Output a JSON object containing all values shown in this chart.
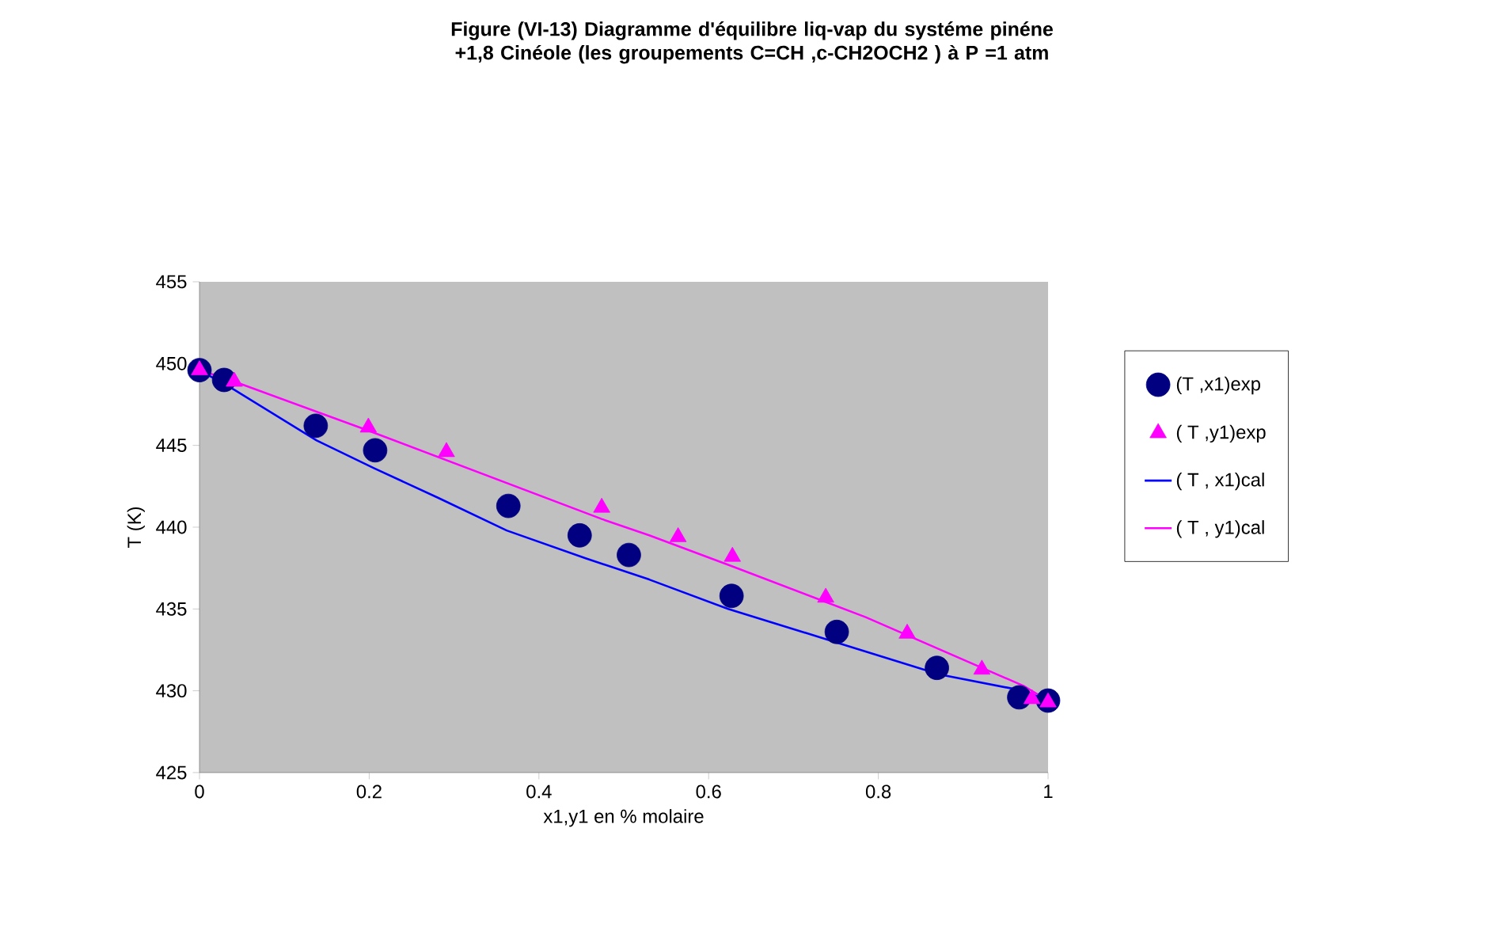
{
  "chart_data": {
    "type": "scatter",
    "title": "Figure (VI-13) Diagramme d'équilibre liq-vap du systéme  pinéne +1,8 Cinéole (les groupements C=CH ,c-CH2OCH2 ) à P =1 atm",
    "xlabel": "x1,y1 en % molaire",
    "ylabel": "T (K)",
    "xlim": [
      0,
      1
    ],
    "xticks": [
      0,
      0.2,
      0.4,
      0.6,
      0.8,
      1
    ],
    "ylim": [
      425,
      455
    ],
    "yticks": [
      425,
      430,
      435,
      440,
      445,
      450,
      455
    ],
    "legend": "right",
    "grid": false,
    "series": [
      {
        "name": "(T ,x1)exp",
        "marker": "circle",
        "color": "#000080",
        "x": [
          0.0,
          0.029,
          0.137,
          0.207,
          0.364,
          0.448,
          0.506,
          0.627,
          0.751,
          0.869,
          0.966,
          1.0
        ],
        "values": [
          449.6,
          449.0,
          446.2,
          444.7,
          441.3,
          439.5,
          438.3,
          435.8,
          433.6,
          431.4,
          429.6,
          429.4
        ]
      },
      {
        "name": "( T ,y1)exp",
        "marker": "triangle",
        "color": "#ff00ff",
        "x": [
          0.0,
          0.041,
          0.199,
          0.291,
          0.474,
          0.564,
          0.628,
          0.738,
          0.834,
          0.922,
          0.981,
          1.0
        ],
        "values": [
          449.6,
          448.9,
          446.1,
          444.6,
          441.2,
          439.4,
          438.2,
          435.7,
          433.5,
          431.3,
          429.5,
          429.3
        ]
      },
      {
        "name": "( T , x1)cal",
        "type": "line",
        "marker": "none",
        "color": "#0000ff",
        "x": [
          0.0,
          0.041,
          0.138,
          0.206,
          0.281,
          0.362,
          0.455,
          0.53,
          0.623,
          0.748,
          0.872,
          0.971,
          1.0
        ],
        "values": [
          449.6,
          448.4,
          445.3,
          443.6,
          441.8,
          439.8,
          438.1,
          436.8,
          435.0,
          433.0,
          431.0,
          430.0,
          429.4
        ]
      },
      {
        "name": "( T , y1)cal",
        "type": "line",
        "marker": "none",
        "color": "#ff00ff",
        "x": [
          0.0,
          0.041,
          0.199,
          0.474,
          0.53,
          0.628,
          0.785,
          0.971,
          1.0
        ],
        "values": [
          449.6,
          448.9,
          445.9,
          440.5,
          439.5,
          437.6,
          434.5,
          430.3,
          429.4
        ]
      }
    ]
  }
}
